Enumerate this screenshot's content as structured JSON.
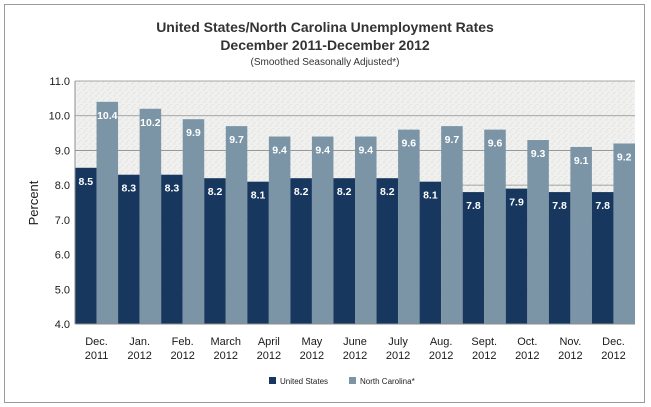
{
  "chart_data": {
    "type": "bar",
    "title": "United States/North Carolina Unemployment Rates",
    "subtitle": "December 2011-December 2012",
    "note": "(Smoothed Seasonally Adjusted*)",
    "ylabel": "Percent",
    "ylim": [
      4.0,
      11.0
    ],
    "yticks": [
      "4.0",
      "5.0",
      "6.0",
      "7.0",
      "8.0",
      "9.0",
      "10.0",
      "11.0"
    ],
    "grid": true,
    "legend_position": "bottom-center",
    "categories": [
      [
        "Dec.",
        "2011"
      ],
      [
        "Jan.",
        "2012"
      ],
      [
        "Feb.",
        "2012"
      ],
      [
        "March",
        "2012"
      ],
      [
        "April",
        "2012"
      ],
      [
        "May",
        "2012"
      ],
      [
        "June",
        "2012"
      ],
      [
        "July",
        "2012"
      ],
      [
        "Aug.",
        "2012"
      ],
      [
        "Sept.",
        "2012"
      ],
      [
        "Oct.",
        "2012"
      ],
      [
        "Nov.",
        "2012"
      ],
      [
        "Dec.",
        "2012"
      ]
    ],
    "series": [
      {
        "name": "United States",
        "color": "#17375e",
        "values": [
          8.5,
          8.3,
          8.3,
          8.2,
          8.1,
          8.2,
          8.2,
          8.2,
          8.1,
          7.8,
          7.9,
          7.8,
          7.8
        ],
        "labels": [
          "8.5",
          "8.3",
          "8.3",
          "8.2",
          "8.1",
          "8.2",
          "8.2",
          "8.2",
          "8.1",
          "7.8",
          "7.9",
          "7.8",
          "7.8"
        ]
      },
      {
        "name": "North Carolina*",
        "color": "#7b95a7",
        "values": [
          10.4,
          10.2,
          9.9,
          9.7,
          9.4,
          9.4,
          9.4,
          9.6,
          9.7,
          9.6,
          9.3,
          9.1,
          9.2
        ],
        "labels": [
          "10.4",
          "10.2",
          "9.9",
          "9.7",
          "9.4",
          "9.4",
          "9.4",
          "9.6",
          "9.7",
          "9.6",
          "9.3",
          "9.1",
          "9.2"
        ]
      }
    ],
    "plot_background": "#f0f0ee",
    "axis_color": "#8c8c8c"
  }
}
